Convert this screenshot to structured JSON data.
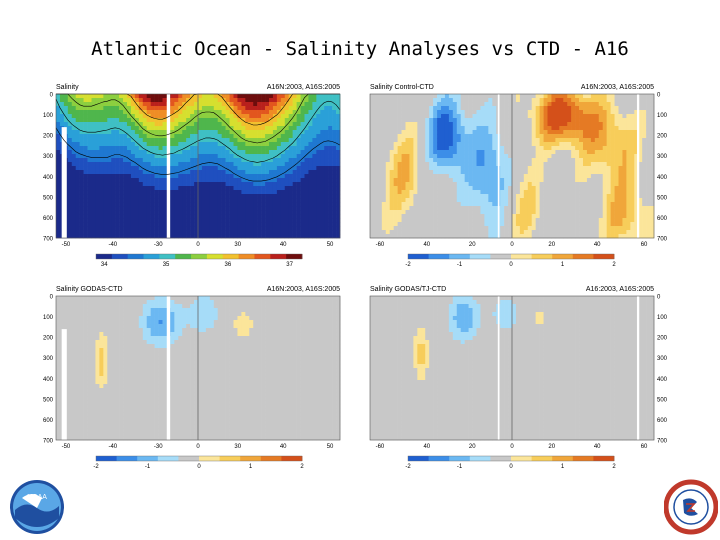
{
  "slide_title": "Atlantic Ocean - Salinity Analyses vs CTD - A16",
  "logos": {
    "noaa": {
      "text": "NOAA",
      "colors": [
        "#1f4fa0",
        "#2e86de",
        "#ffffff"
      ]
    },
    "nws": {
      "text": "NATIONAL WEATHER SERVICE",
      "colors": [
        "#c0392b",
        "#1f4fa0",
        "#ffffff"
      ]
    }
  },
  "chart_data": [
    {
      "type": "heatmap",
      "title": "Salinity",
      "subtitle": "A16N:2003, A16S:2005",
      "x_ticks": [
        "-50",
        "-40",
        "-30",
        "0",
        "30",
        "40",
        "50"
      ],
      "y_ticks": [
        "0",
        "100",
        "200",
        "300",
        "400",
        "500",
        "600",
        "700"
      ],
      "y_axis_side": "left",
      "colorbar_ticks": [
        "34",
        "35",
        "36",
        "37"
      ],
      "palette": [
        "#1b2a8a",
        "#1f4fbf",
        "#1f78d1",
        "#2aa0d8",
        "#3fc0c4",
        "#4fb64c",
        "#8ccf3f",
        "#d6df2f",
        "#f2c12e",
        "#ef8d25",
        "#e2561e",
        "#b9201c",
        "#6e0d0d"
      ],
      "kind": "salinity"
    },
    {
      "type": "heatmap",
      "title": "Salinity Control-CTD",
      "subtitle": "A16N:2003, A16S:2005",
      "x_ticks": [
        "-60",
        "40",
        "20",
        "0",
        "20",
        "40",
        "60"
      ],
      "y_ticks": [
        "0",
        "100",
        "200",
        "300",
        "400",
        "500",
        "600",
        "700"
      ],
      "y_axis_side": "right",
      "colorbar_ticks": [
        "-2",
        "-1",
        "0",
        "1",
        "2"
      ],
      "palette": [
        "#1f5fd0",
        "#3c8ee8",
        "#6bb8f2",
        "#a6dcf8",
        "#c8c8c8",
        "#fbe59a",
        "#f7cd5a",
        "#f0a63a",
        "#e57a24",
        "#d4501a"
      ],
      "kind": "control"
    },
    {
      "type": "heatmap",
      "title": "Salinity GODAS-CTD",
      "subtitle": "A16N:2003, A16S:2005",
      "x_ticks": [
        "-50",
        "-40",
        "-30",
        "0",
        "30",
        "40",
        "50"
      ],
      "y_ticks": [
        "0",
        "100",
        "200",
        "300",
        "400",
        "500",
        "600",
        "700"
      ],
      "y_axis_side": "left",
      "colorbar_ticks": [
        "-2",
        "-1",
        "0",
        "1",
        "2"
      ],
      "palette": [
        "#1f5fd0",
        "#3c8ee8",
        "#6bb8f2",
        "#a6dcf8",
        "#c8c8c8",
        "#fbe59a",
        "#f7cd5a",
        "#f0a63a",
        "#e57a24",
        "#d4501a"
      ],
      "kind": "godas"
    },
    {
      "type": "heatmap",
      "title": "Salinity GODAS/TJ-CTD",
      "subtitle": "A16:2003, A16S:2005",
      "x_ticks": [
        "-60",
        "40",
        "20",
        "0",
        "20",
        "40",
        "60"
      ],
      "y_ticks": [
        "0",
        "100",
        "200",
        "300",
        "400",
        "500",
        "600",
        "700"
      ],
      "y_axis_side": "right",
      "colorbar_ticks": [
        "-2",
        "-1",
        "0",
        "1",
        "2"
      ],
      "palette": [
        "#1f5fd0",
        "#3c8ee8",
        "#6bb8f2",
        "#a6dcf8",
        "#c8c8c8",
        "#fbe59a",
        "#f7cd5a",
        "#f0a63a",
        "#e57a24",
        "#d4501a"
      ],
      "kind": "godastj"
    }
  ]
}
